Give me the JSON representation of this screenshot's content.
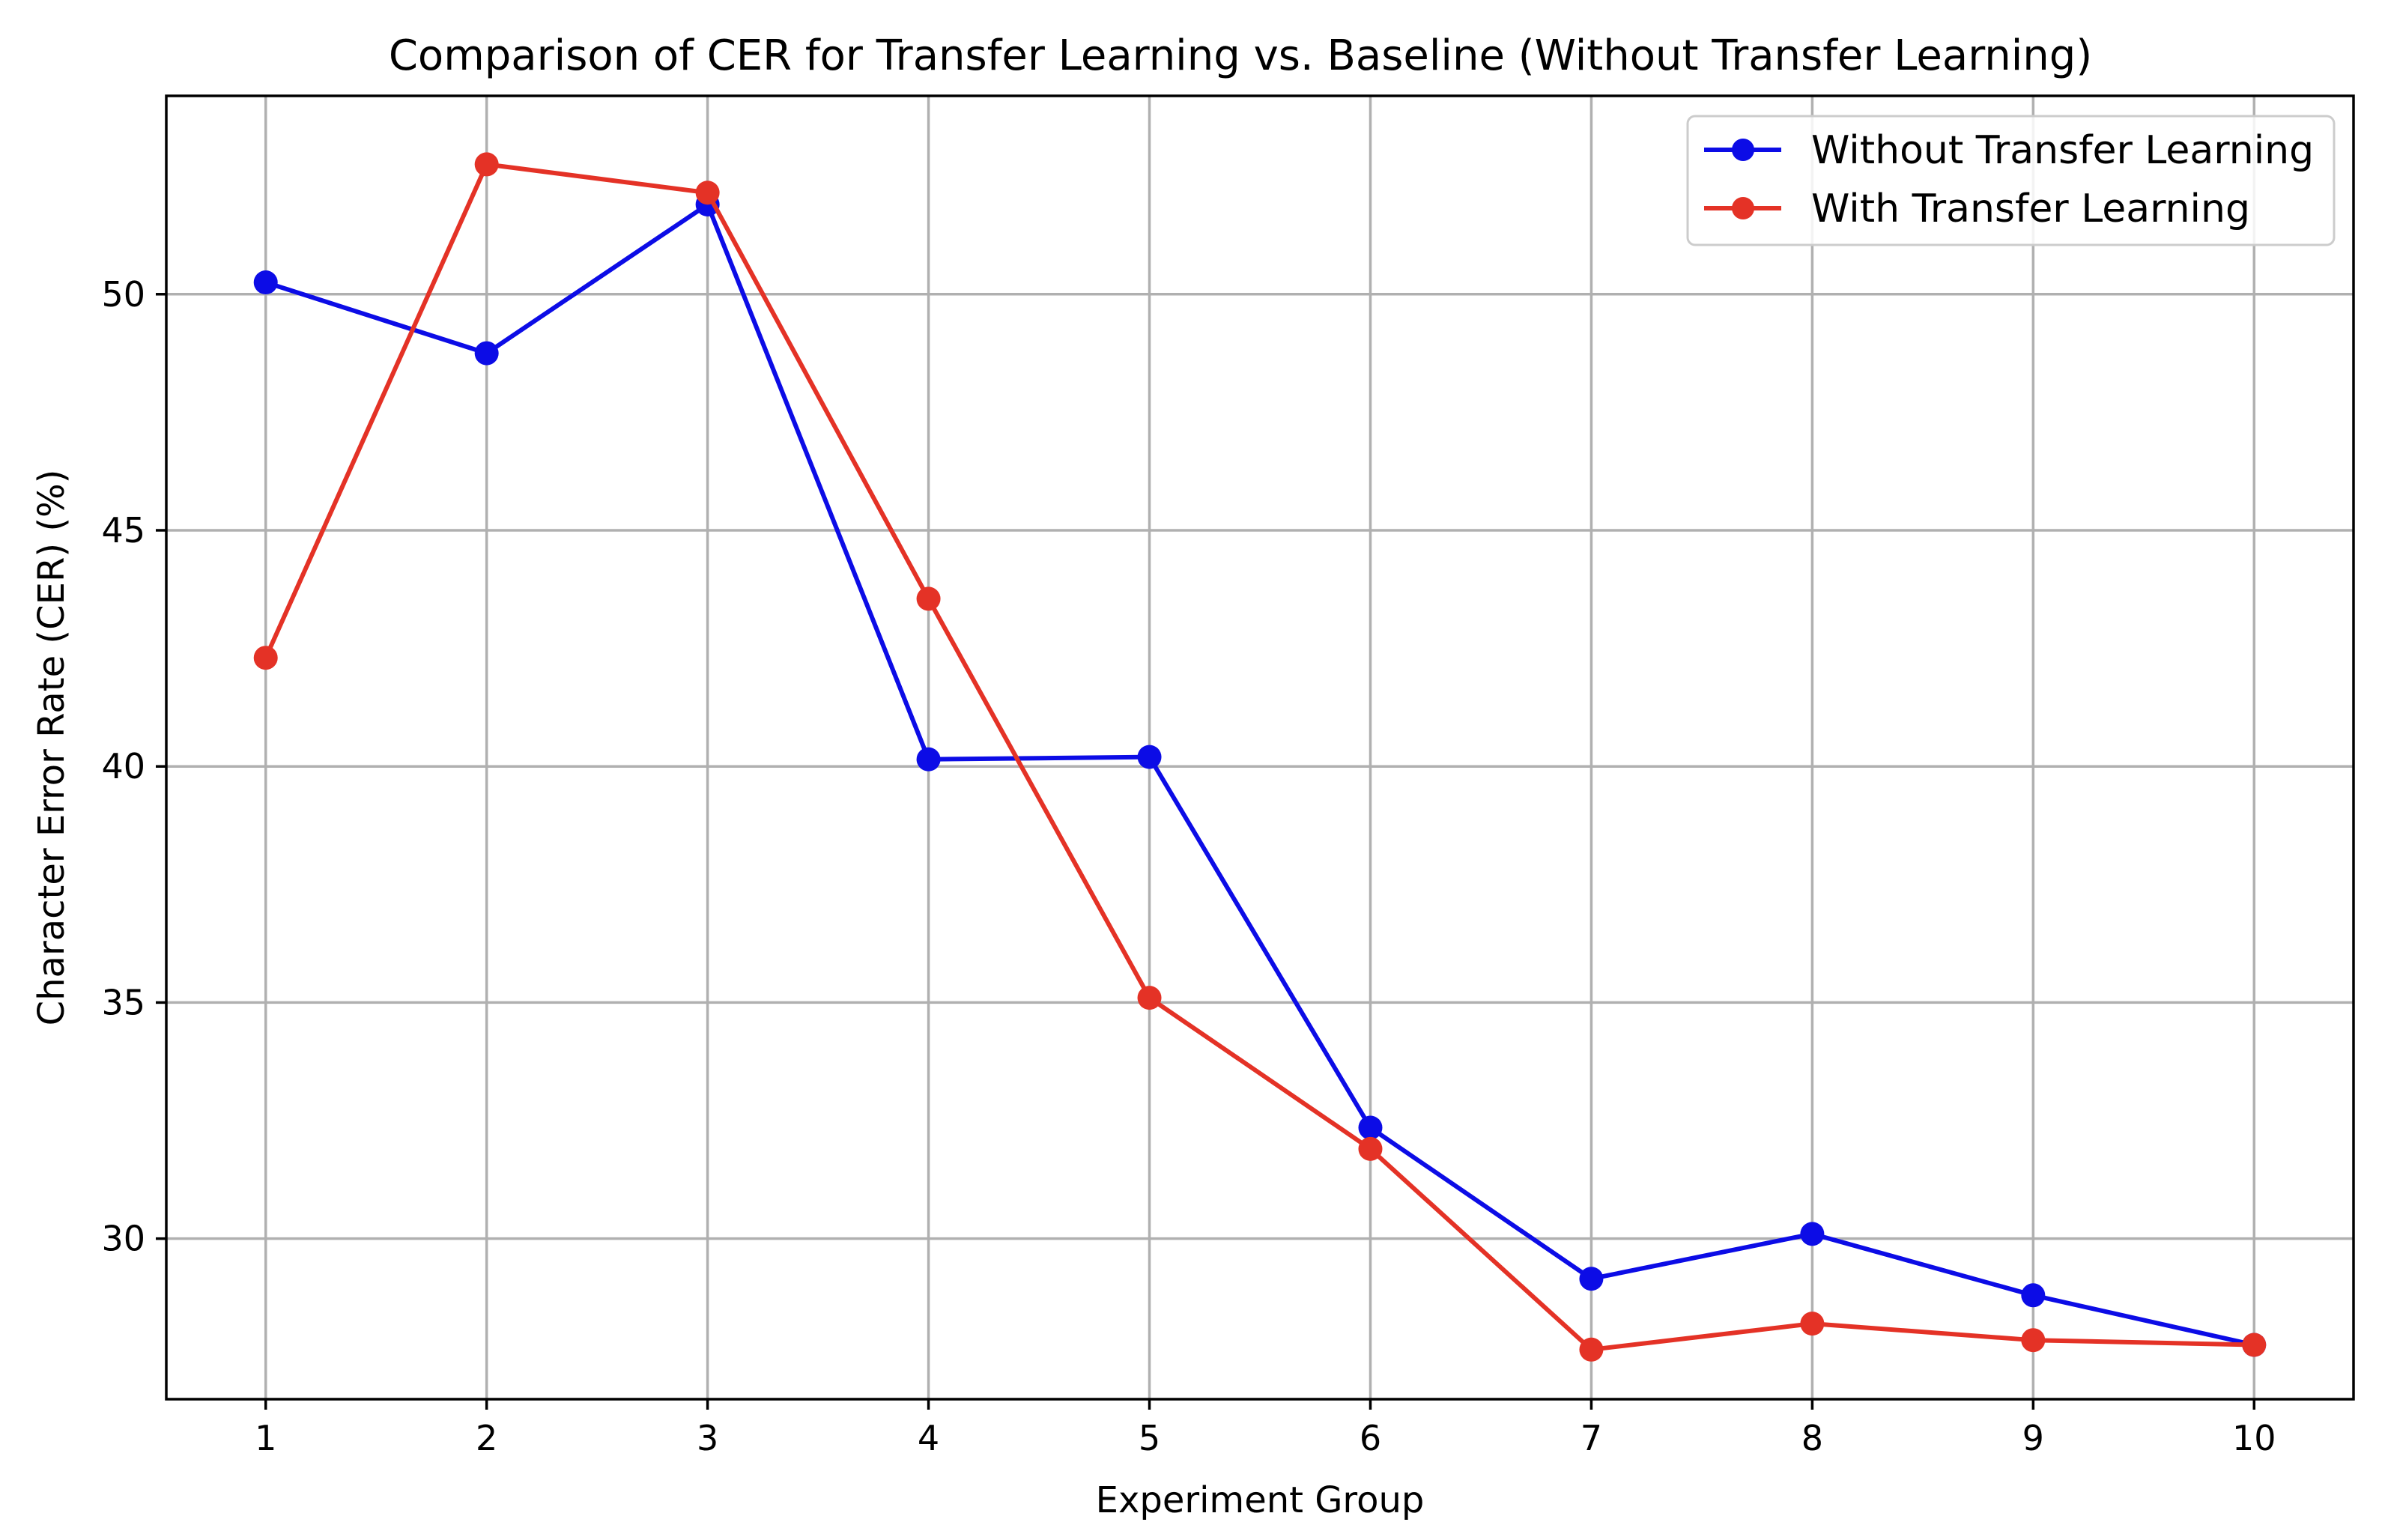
{
  "chart_data": {
    "type": "line",
    "title": "Comparison of CER for Transfer Learning vs. Baseline (Without Transfer Learning)",
    "xlabel": "Experiment Group",
    "ylabel": "Character Error Rate (CER) (%)",
    "x": [
      1,
      2,
      3,
      4,
      5,
      6,
      7,
      8,
      9,
      10
    ],
    "xticks": [
      "1",
      "2",
      "3",
      "4",
      "5",
      "6",
      "7",
      "8",
      "9",
      "10"
    ],
    "yticks": [
      "30",
      "35",
      "40",
      "45",
      "50"
    ],
    "yticks_values": [
      30,
      35,
      40,
      45,
      50
    ],
    "xlim": [
      0.55,
      10.45
    ],
    "ylim": [
      26.6,
      54.2
    ],
    "grid": true,
    "legend_position": "top-right",
    "series": [
      {
        "name": "Without Transfer Learning",
        "color": "#0c0ce6",
        "marker": "circle",
        "values": [
          50.25,
          48.75,
          51.9,
          40.15,
          40.2,
          32.35,
          29.15,
          30.1,
          28.8,
          27.75
        ]
      },
      {
        "name": "With Transfer Learning",
        "color": "#e43226",
        "marker": "circle",
        "values": [
          42.3,
          52.75,
          52.15,
          43.55,
          35.1,
          31.9,
          27.65,
          28.2,
          27.85,
          27.75
        ]
      }
    ]
  }
}
